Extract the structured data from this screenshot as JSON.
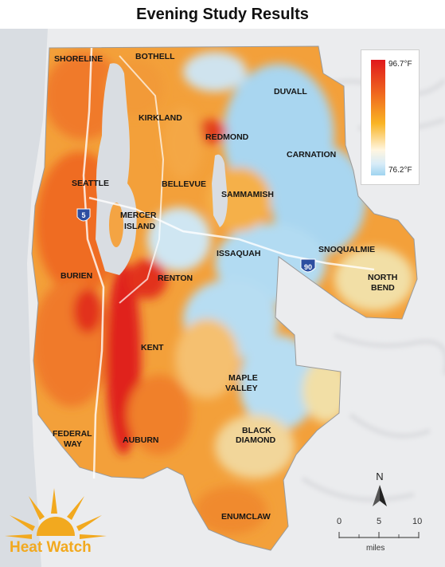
{
  "title": "Evening Study Results",
  "legend": {
    "max_label": "96.7°F",
    "min_label": "76.2°F"
  },
  "places": {
    "shoreline": "SHORELINE",
    "bothell": "BOTHELL",
    "duvall": "DUVALL",
    "kirkland": "KIRKLAND",
    "redmond": "REDMOND",
    "carnation": "CARNATION",
    "seattle": "SEATTLE",
    "bellevue": "BELLEVUE",
    "sammamish": "SAMMAMISH",
    "mercer_1": "MERCER",
    "mercer_2": "ISLAND",
    "issaquah": "ISSAQUAH",
    "snoqualmie": "SNOQUALMIE",
    "north_bend_1": "NORTH",
    "north_bend_2": "BEND",
    "burien": "BURIEN",
    "renton": "RENTON",
    "kent": "KENT",
    "maple_valley_1": "MAPLE",
    "maple_valley_2": "VALLEY",
    "federal_way_1": "FEDERAL",
    "federal_way_2": "WAY",
    "black_diamond_1": "BLACK",
    "black_diamond_2": "DIAMOND",
    "auburn": "AUBURN",
    "enumclaw": "ENUMCLAW"
  },
  "highways": {
    "i5": "5",
    "i90": "90"
  },
  "north_arrow": {
    "label": "N"
  },
  "scale": {
    "ticks": [
      "0",
      "5",
      "10"
    ],
    "units": "miles"
  },
  "logo": {
    "text": "Heat Watch"
  },
  "colors": {
    "hot": "#e0181c",
    "warm": "#f06a1e",
    "mild": "#f9b424",
    "cool": "#9fd4f0",
    "water": "#d8dde2",
    "terrain": "#ecedef",
    "logo": "#f2a91f"
  }
}
